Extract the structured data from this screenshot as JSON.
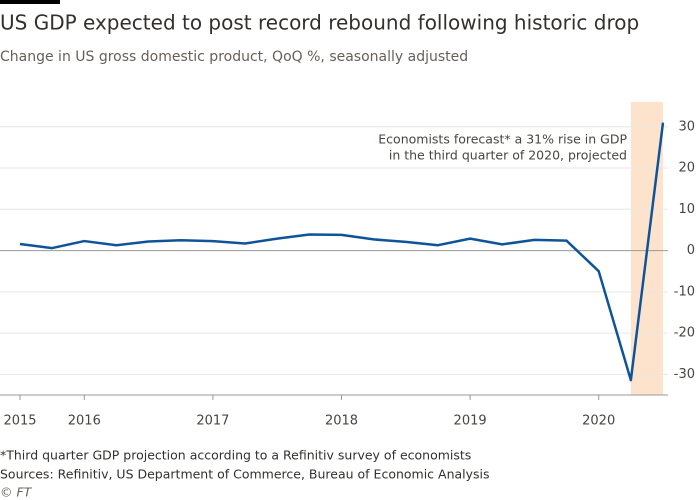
{
  "chart_data": {
    "type": "line",
    "title": "US GDP expected to post record rebound following historic drop",
    "subtitle": "Change in US gross domestic product, QoQ %, seasonally adjusted",
    "annotation": [
      "Economists forecast* a 31% rise in GDP",
      "in the third quarter of 2020, projected"
    ],
    "footnote": "*Third quarter GDP projection according to a Refinitiv survey of economists",
    "source": "Sources: Refinitiv, US Department of Commerce, Bureau of Economic Analysis",
    "credit": "© FT",
    "categories": [
      "2015",
      null,
      "2016",
      null,
      null,
      null,
      "2017",
      null,
      null,
      null,
      "2018",
      null,
      null,
      null,
      "2019",
      null,
      null,
      null,
      "2020",
      null,
      null
    ],
    "series": [
      {
        "name": "US GDP",
        "color": "#0f5499",
        "values": [
          1.6,
          0.6,
          2.3,
          1.3,
          2.2,
          2.5,
          2.3,
          1.7,
          2.9,
          3.9,
          3.8,
          2.7,
          2.1,
          1.3,
          2.9,
          1.5,
          2.6,
          2.4,
          -5.0,
          -31.4,
          31
        ]
      }
    ],
    "ylim": [
      -35,
      36
    ],
    "yticks": [
      30,
      20,
      10,
      0,
      -10,
      -20,
      -30
    ],
    "grid": true
  }
}
